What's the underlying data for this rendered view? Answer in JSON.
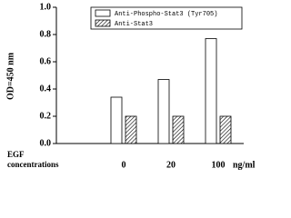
{
  "chart_data": {
    "type": "bar",
    "y_label": "OD=450 nm",
    "x_label": "EGF concentrations",
    "x_unit": "ng/ml",
    "categories": [
      "0",
      "20",
      "100"
    ],
    "series": [
      {
        "name": "Anti-Phospho-Stat3 (Tyr705)",
        "color": "#ffffff",
        "values": [
          0.34,
          0.47,
          0.77
        ]
      },
      {
        "name": "Anti-Stat3",
        "color": "hatch",
        "values": [
          0.2,
          0.2,
          0.2
        ]
      }
    ],
    "ylim": [
      0,
      1
    ],
    "yticks": [
      {
        "value": 0,
        "label": "0.0"
      },
      0.2,
      0.4,
      0.6,
      0.8,
      {
        "value": 1,
        "label": "1.0"
      }
    ],
    "legend": "top-right"
  }
}
